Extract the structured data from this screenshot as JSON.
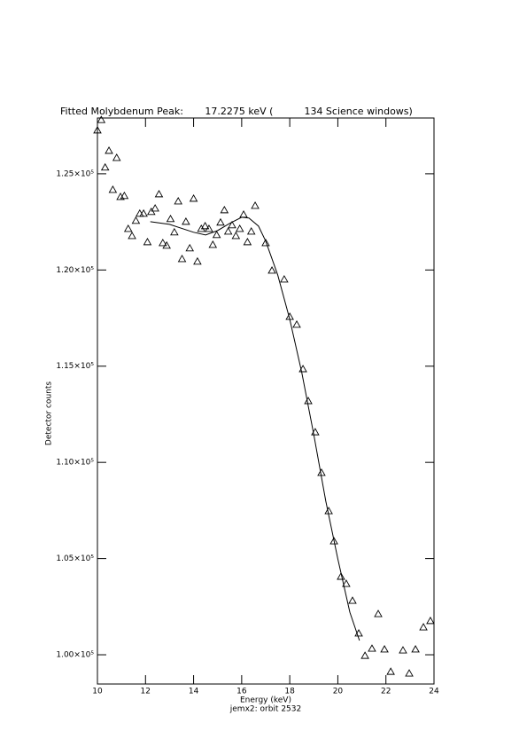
{
  "chart_data": {
    "type": "scatter",
    "title": "Fitted Molybdenum Peak:       17.2275 keV (          134 Science windows)",
    "x_label": "Energy (keV)",
    "subtitle": "jemx2: orbit 2532",
    "y_label": "Detector counts",
    "xlim": [
      10,
      24
    ],
    "xticks": [
      10,
      12,
      14,
      16,
      18,
      20,
      22,
      24
    ],
    "ylim": [
      98480,
      127900
    ],
    "yticks": [
      {
        "value": 100000,
        "label": "1.00×10⁵"
      },
      {
        "value": 105000,
        "label": "1.05×10⁵"
      },
      {
        "value": 110000,
        "label": "1.10×10⁵"
      },
      {
        "value": 115000,
        "label": "1.15×10⁵"
      },
      {
        "value": 120000,
        "label": "1.20×10⁵"
      },
      {
        "value": 125000,
        "label": "1.25×10⁵"
      }
    ],
    "color": "#000000",
    "series": [
      {
        "style": "markers",
        "x": [
          10.0,
          10.16,
          10.32,
          10.48,
          10.64,
          10.8,
          10.96,
          11.12,
          11.28,
          11.44,
          11.6,
          11.76,
          11.92,
          12.08,
          12.24,
          12.4,
          12.56,
          12.72,
          12.88,
          13.04,
          13.2,
          13.36,
          13.52,
          13.68,
          13.84,
          14.0,
          14.16,
          14.32,
          14.48,
          14.64,
          14.8,
          14.96,
          15.12,
          15.28,
          15.44,
          15.6,
          15.76,
          15.92,
          16.08,
          16.24,
          16.4,
          16.56,
          17.0,
          17.26,
          17.77,
          18.0,
          18.29,
          18.55,
          18.77,
          19.06,
          19.32,
          19.62,
          19.84,
          20.13,
          20.35,
          20.61,
          20.87,
          21.13,
          21.42,
          21.68,
          21.94,
          22.2,
          22.71,
          22.97,
          23.23,
          23.56,
          23.85
        ],
        "values": [
          127260,
          127800,
          125330,
          126200,
          124170,
          125830,
          123800,
          123850,
          122140,
          121770,
          122560,
          122930,
          122930,
          121450,
          123020,
          123200,
          123940,
          121400,
          121270,
          122650,
          121960,
          123570,
          120570,
          122510,
          121130,
          123710,
          120440,
          122140,
          122280,
          122140,
          121310,
          121820,
          122470,
          123110,
          122000,
          122330,
          121770,
          122140,
          122880,
          121450,
          122000,
          123340,
          121400,
          119970,
          119510,
          117570,
          117160,
          114850,
          113190,
          111570,
          109460,
          107470,
          105900,
          104060,
          103690,
          102810,
          101110,
          99950,
          100320,
          102120,
          100280,
          99120,
          100230,
          99030,
          100280,
          101430,
          101760
        ]
      },
      {
        "style": "line",
        "x": [
          12.2,
          13.0,
          14.0,
          14.5,
          15.0,
          15.5,
          16.0,
          16.3,
          16.7,
          17.0,
          17.5,
          18.0,
          18.5,
          19.0,
          19.5,
          20.0,
          20.5,
          20.9
        ],
        "values": [
          122510,
          122370,
          121960,
          121820,
          122050,
          122420,
          122740,
          122700,
          122280,
          121500,
          119740,
          117440,
          114670,
          111440,
          107980,
          104980,
          102210,
          100740
        ]
      }
    ]
  }
}
